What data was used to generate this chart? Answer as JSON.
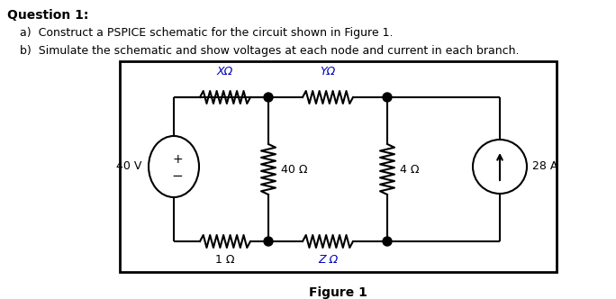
{
  "title_q": "Question 1:",
  "item_a": "a)  Construct a PSPICE schematic for the circuit shown in Figure 1.",
  "item_b": "b)  Simulate the schematic and show voltages at each node and current in each branch.",
  "figure_caption": "Figure 1",
  "voltage_source": "40 V",
  "current_source": "28 A",
  "R1_label": "XΩ",
  "R2_label": "YΩ",
  "R3_label": "40 Ω",
  "R4_label": "4 Ω",
  "R5_label": "1 Ω",
  "R6_label": "Z Ω",
  "line_color": "#000000",
  "component_color": "#000000",
  "label_color": "#0000bb",
  "text_color": "#000000",
  "bg_color": "#ffffff"
}
